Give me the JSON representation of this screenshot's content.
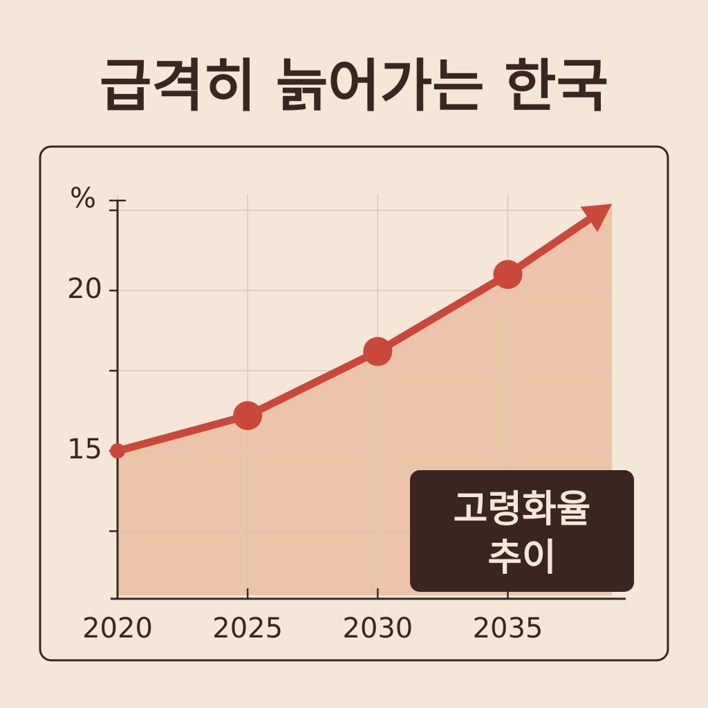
{
  "chart_data": {
    "type": "area-line",
    "title": "급격히 늙어가는 한국",
    "y_label": "%",
    "annotation": [
      "고령화율",
      "추이"
    ],
    "x": [
      2020,
      2025,
      2030,
      2035,
      2039
    ],
    "series": [
      {
        "name": "고령화율",
        "color": "#c9483a",
        "values": [
          15,
          16.1,
          18.1,
          20.5,
          22.7
        ]
      }
    ],
    "area_color": "#ebc4a9",
    "xlim": [
      2020,
      2039
    ],
    "xticks": [
      2020,
      2025,
      2030,
      2035
    ],
    "ylim": [
      10.5,
      23
    ],
    "yticks": [
      15,
      20
    ],
    "minor_yticks": [
      12.5,
      17.5,
      22.5
    ],
    "grid": true
  }
}
